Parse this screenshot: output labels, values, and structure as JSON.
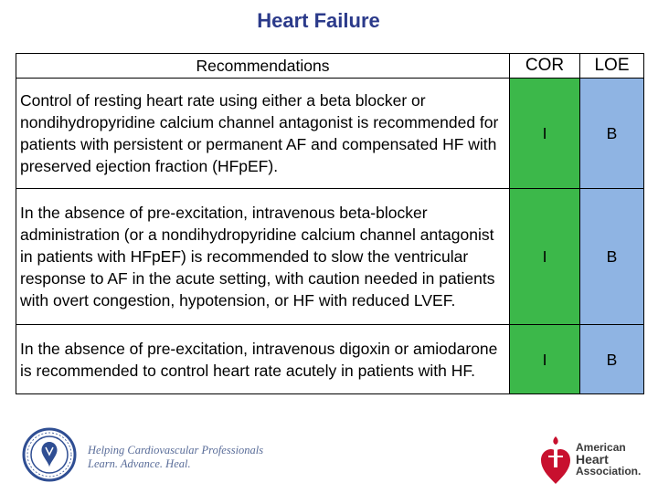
{
  "slide": {
    "title": "Heart Failure"
  },
  "table": {
    "headers": {
      "recommendations": "Recommendations",
      "cor": "COR",
      "loe": "LOE"
    },
    "rows": [
      {
        "text_a": "Control of resting heart rate using either a beta blocker or nondihydropyridine calcium channel antagonist is recommended for patients with persistent or permanent AF and compensated HF with preserved ejection fraction (HFpEF).",
        "text_b": "In the absence of pre-excitation, intravenous beta-blocker administration (or a nondihydropyridine calcium channel antagonist in patients with HFpEF) is recommended to slow the ventricular response to AF in the acute setting, with caution needed in patients with overt congestion, hypotension, or HF with reduced LVEF.",
        "cor_a": "I",
        "loe_a": "B",
        "cor_b": "I",
        "loe_b": "B"
      },
      {
        "text": "In the absence of pre-excitation, intravenous digoxin or amiodarone is recommended to control heart rate acutely in patients with HF.",
        "cor": "I",
        "loe": "B"
      }
    ]
  },
  "footer": {
    "acc_tagline_line1": "Helping Cardiovascular Professionals",
    "acc_tagline_line2": "Learn. Advance. Heal.",
    "aha_line1": "American",
    "aha_line2": "Heart",
    "aha_line3": "Association."
  },
  "colors": {
    "title": "#2b3a8a",
    "cor_fill": "#3cb84a",
    "loe_fill": "#8fb4e3",
    "aha_red": "#c8102e",
    "acc_blue": "#2f4e93"
  }
}
